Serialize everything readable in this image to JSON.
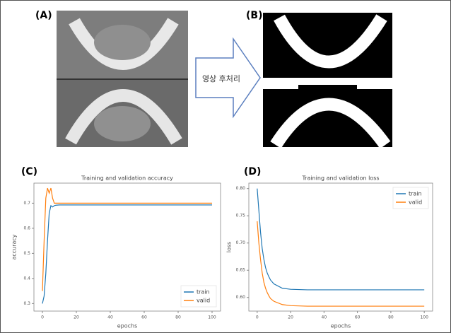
{
  "labels": {
    "a": "(A)",
    "b": "(B)",
    "c": "(C)",
    "d": "(D)"
  },
  "arrow_text": "영상 후처리",
  "chart_data": [
    {
      "type": "line",
      "title": "Training and validation accuracy",
      "xlabel": "epochs",
      "ylabel": "accuracy",
      "x": [
        0,
        1,
        2,
        3,
        4,
        5,
        6,
        7,
        8,
        10,
        15,
        20,
        30,
        40,
        50,
        60,
        70,
        80,
        90,
        100
      ],
      "xlim": [
        -5,
        105
      ],
      "xticks": [
        0,
        20,
        40,
        60,
        80,
        100
      ],
      "ylim": [
        0.27,
        0.78
      ],
      "yticks": [
        0.3,
        0.4,
        0.5,
        0.6,
        0.7
      ],
      "legend": "lower right",
      "series": [
        {
          "name": "train",
          "color": "#1f77b4",
          "values": [
            0.3,
            0.33,
            0.42,
            0.55,
            0.66,
            0.69,
            0.685,
            0.69,
            0.692,
            0.693,
            0.693,
            0.693,
            0.693,
            0.693,
            0.693,
            0.693,
            0.693,
            0.693,
            0.693,
            0.693
          ]
        },
        {
          "name": "valid",
          "color": "#ff7f0e",
          "values": [
            0.35,
            0.55,
            0.72,
            0.76,
            0.74,
            0.76,
            0.72,
            0.7,
            0.7,
            0.7,
            0.7,
            0.7,
            0.7,
            0.7,
            0.7,
            0.7,
            0.7,
            0.7,
            0.7,
            0.7
          ]
        }
      ]
    },
    {
      "type": "line",
      "title": "Training and validation loss",
      "xlabel": "epochs",
      "ylabel": "loss",
      "x": [
        0,
        1,
        2,
        3,
        4,
        5,
        6,
        7,
        8,
        10,
        15,
        20,
        30,
        40,
        50,
        60,
        70,
        80,
        90,
        100
      ],
      "xlim": [
        -5,
        105
      ],
      "xticks": [
        0,
        20,
        40,
        60,
        80,
        100
      ],
      "ylim": [
        0.575,
        0.81
      ],
      "yticks": [
        {
          "value": 0.6,
          "label": "0.60"
        },
        {
          "value": 0.65,
          "label": "0.65"
        },
        {
          "value": 0.7,
          "label": "0.70"
        },
        {
          "value": 0.75,
          "label": "0.75"
        },
        {
          "value": 0.8,
          "label": "0.80"
        }
      ],
      "legend": "upper right",
      "series": [
        {
          "name": "train",
          "color": "#1f77b4",
          "values": [
            0.8,
            0.76,
            0.72,
            0.69,
            0.67,
            0.655,
            0.645,
            0.638,
            0.632,
            0.625,
            0.617,
            0.615,
            0.614,
            0.614,
            0.614,
            0.614,
            0.614,
            0.614,
            0.614,
            0.614
          ]
        },
        {
          "name": "valid",
          "color": "#ff7f0e",
          "values": [
            0.74,
            0.7,
            0.67,
            0.645,
            0.628,
            0.617,
            0.609,
            0.603,
            0.598,
            0.593,
            0.587,
            0.585,
            0.584,
            0.584,
            0.584,
            0.584,
            0.584,
            0.584,
            0.584,
            0.584
          ]
        }
      ]
    }
  ]
}
